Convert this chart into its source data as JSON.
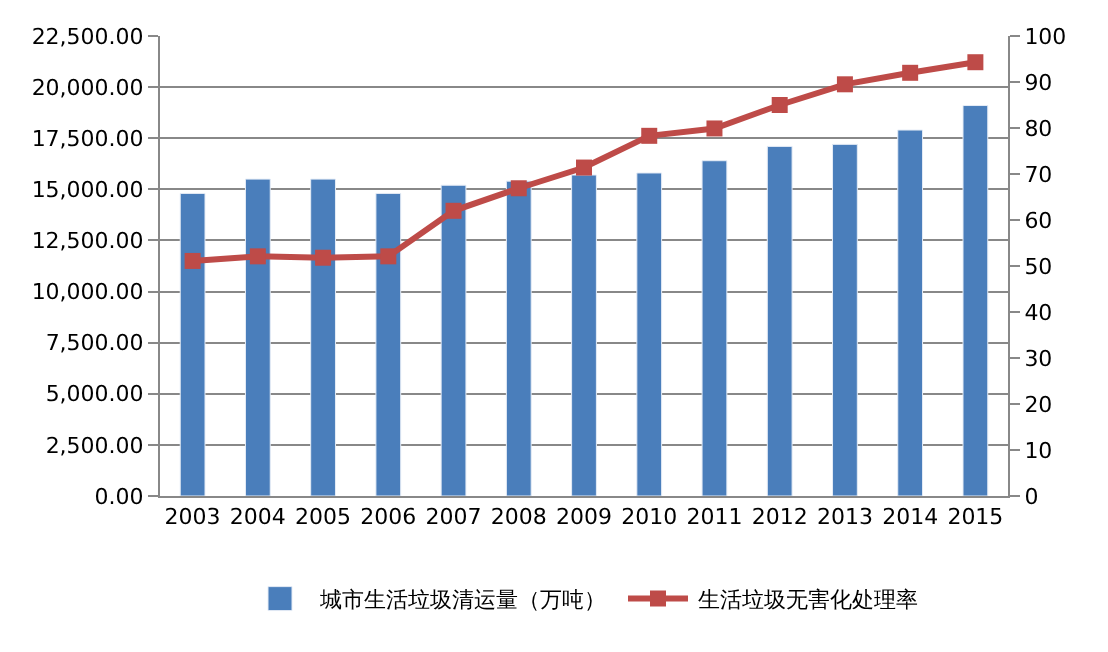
{
  "chart_data": {
    "type": "bar",
    "categories": [
      "2003",
      "2004",
      "2005",
      "2006",
      "2007",
      "2008",
      "2009",
      "2010",
      "2011",
      "2012",
      "2013",
      "2014",
      "2015"
    ],
    "series": [
      {
        "name": "城市生活垃圾清运量（万吨）",
        "color": "#4a7ebb",
        "values": [
          14800,
          15500,
          15500,
          14800,
          15200,
          15400,
          15700,
          15800,
          16400,
          17100,
          17200,
          17900,
          19100
        ]
      },
      {
        "name": "生活垃圾无害化处理率",
        "color": "#be4b48",
        "type": "line",
        "axis": "y2",
        "marker": "square",
        "values": [
          51.1,
          52.1,
          51.8,
          52.1,
          62.0,
          66.9,
          71.4,
          78.3,
          79.9,
          85.0,
          89.5,
          92.0,
          94.3
        ]
      }
    ],
    "ylim": [
      0,
      22500
    ],
    "yticks": [
      {
        "value": 0,
        "label": "0.00"
      },
      {
        "value": 2500,
        "label": "2,500.00"
      },
      {
        "value": 5000,
        "label": "5,000.00"
      },
      {
        "value": 7500,
        "label": "7,500.00"
      },
      {
        "value": 10000,
        "label": "10,000.00"
      },
      {
        "value": 12500,
        "label": "12,500.00"
      },
      {
        "value": 15000,
        "label": "15,000.00"
      },
      {
        "value": 17500,
        "label": "17,500.00"
      },
      {
        "value": 20000,
        "label": "20,000.00"
      },
      {
        "value": 22500,
        "label": "22,500.00"
      }
    ],
    "y2lim": [
      0,
      100
    ],
    "y2ticks": [
      0,
      10,
      20,
      30,
      40,
      50,
      60,
      70,
      80,
      90,
      100
    ],
    "grid": "y",
    "legend": "bottom"
  }
}
